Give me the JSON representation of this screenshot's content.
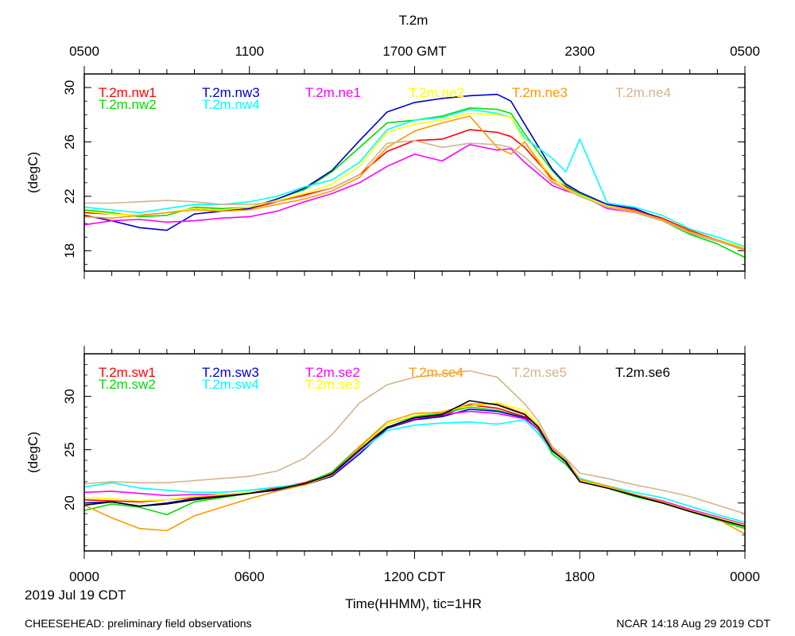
{
  "chart_data": [
    {
      "type": "line",
      "title": "T.2m",
      "top_axis_title": "T.2m",
      "top_tick_labels": [
        "0500",
        "1100",
        "1700 GMT",
        "2300",
        "0500"
      ],
      "ylabel": "(degC)",
      "ylim": [
        16.5,
        31
      ],
      "yticks": [
        18,
        22,
        26,
        30
      ],
      "xlim": [
        0,
        24
      ],
      "legend": [
        "T.2m.nw1",
        "T.2m.nw3",
        "T.2m.ne1",
        "T.2m.ne2",
        "T.2m.ne3",
        "T.2m.ne4",
        "T.2m.nw2",
        "T.2m.nw4"
      ],
      "series": [
        {
          "name": "T.2m.nw1",
          "color": "#ff0000",
          "x": [
            0,
            1,
            2,
            3,
            4,
            5,
            6,
            7,
            8,
            9,
            10,
            11,
            12,
            13,
            14,
            15,
            15.5,
            16,
            17,
            17.5,
            18,
            19,
            20,
            21,
            22,
            23,
            24
          ],
          "y": [
            20.8,
            20.7,
            20.6,
            20.8,
            21.1,
            21,
            21.1,
            21.6,
            22.1,
            22.6,
            23.6,
            25.3,
            26.1,
            26.2,
            26.9,
            26.7,
            26.4,
            25.6,
            23.3,
            22.7,
            22.1,
            21.3,
            21,
            20.4,
            19.5,
            18.8,
            18.1
          ]
        },
        {
          "name": "T.2m.nw2",
          "color": "#00dd00",
          "x": [
            0,
            1,
            2,
            3,
            4,
            5,
            6,
            7,
            8,
            9,
            10,
            11,
            12,
            13,
            14,
            15,
            15.5,
            16,
            17,
            17.5,
            18,
            19,
            20,
            21,
            22,
            23,
            24
          ],
          "y": [
            21,
            20.8,
            20.5,
            20.6,
            21.2,
            21.1,
            21.2,
            21.8,
            22.5,
            23.8,
            25.6,
            27.4,
            27.6,
            27.9,
            28.5,
            28.4,
            28.1,
            26.6,
            23.9,
            22.8,
            22.2,
            21.3,
            20.8,
            20.2,
            19.2,
            18.5,
            17.5
          ]
        },
        {
          "name": "T.2m.nw3",
          "color": "#0000cc",
          "x": [
            0,
            1,
            2,
            3,
            4,
            5,
            6,
            7,
            8,
            9,
            10,
            11,
            12,
            13,
            14,
            15,
            15.5,
            16,
            17,
            17.5,
            18,
            19,
            20,
            21,
            22,
            23,
            24
          ],
          "y": [
            20.6,
            20.2,
            19.7,
            19.5,
            20.7,
            20.9,
            21.1,
            21.8,
            22.6,
            23.9,
            26.1,
            28.2,
            28.9,
            29.2,
            29.4,
            29.5,
            29,
            27.3,
            24,
            22.9,
            22.3,
            21.4,
            21.1,
            20.3,
            19.3,
            18.7,
            18.2
          ]
        },
        {
          "name": "T.2m.nw4",
          "color": "#00ffff",
          "x": [
            0,
            1,
            2,
            3,
            4,
            5,
            6,
            7,
            8,
            9,
            10,
            11,
            12,
            13,
            14,
            15,
            15.5,
            16,
            17,
            17.5,
            18,
            19,
            20,
            21,
            22,
            23,
            24
          ],
          "y": [
            21.2,
            21,
            20.8,
            21.1,
            21.4,
            21.4,
            21.6,
            22,
            22.7,
            23.2,
            24.5,
            26.9,
            27.6,
            27.8,
            28.4,
            28.1,
            27.8,
            26.3,
            24.8,
            23.8,
            26.2,
            21.5,
            21.2,
            20.6,
            19.6,
            19,
            18.3
          ]
        },
        {
          "name": "T.2m.ne1",
          "color": "#ff00ff",
          "x": [
            0,
            1,
            2,
            3,
            4,
            5,
            6,
            7,
            8,
            9,
            10,
            11,
            12,
            13,
            14,
            15,
            15.5,
            16,
            17,
            17.5,
            18,
            19,
            20,
            21,
            22,
            23,
            24
          ],
          "y": [
            19.9,
            20.2,
            20.3,
            20.1,
            20.2,
            20.4,
            20.5,
            20.9,
            21.6,
            22.2,
            23,
            24.2,
            25.1,
            24.6,
            25.8,
            25.4,
            25.5,
            24.5,
            22.8,
            22.4,
            22.1,
            21.1,
            20.8,
            20.3,
            19.3,
            18.7,
            18.1
          ]
        },
        {
          "name": "T.2m.ne2",
          "color": "#ffff00",
          "x": [
            0,
            1,
            2,
            3,
            4,
            5,
            6,
            7,
            8,
            9,
            10,
            11,
            12,
            13,
            14,
            15,
            15.5,
            16,
            17,
            17.5,
            18,
            19,
            20,
            21,
            22,
            23,
            24
          ],
          "y": [
            20.9,
            20.7,
            20.6,
            20.8,
            21.1,
            21,
            21.2,
            21.7,
            22.2,
            22.9,
            24.2,
            26.7,
            27.3,
            27.6,
            28.1,
            28,
            27.8,
            26,
            23.4,
            22.6,
            22.1,
            21.3,
            20.9,
            20.3,
            19.4,
            18.8,
            18.2
          ]
        },
        {
          "name": "T.2m.ne3",
          "color": "#ff9900",
          "x": [
            0,
            1,
            2,
            3,
            4,
            5,
            6,
            7,
            8,
            9,
            10,
            11,
            12,
            13,
            14,
            15,
            15.5,
            16,
            17,
            17.5,
            18,
            19,
            20,
            21,
            22,
            23,
            24
          ],
          "y": [
            20.5,
            20.4,
            20.6,
            20.8,
            21,
            20.9,
            21,
            21.4,
            21.8,
            22.4,
            23.4,
            25.6,
            26.8,
            27.4,
            27.9,
            25.6,
            25.1,
            26,
            23.1,
            22.5,
            22,
            21.2,
            20.9,
            20.3,
            19.4,
            18.8,
            18.1
          ]
        },
        {
          "name": "T.2m.ne4",
          "color": "#d2b48c",
          "x": [
            0,
            1,
            2,
            3,
            4,
            5,
            6,
            7,
            8,
            9,
            10,
            11,
            12,
            13,
            14,
            15,
            15.5,
            16,
            17,
            17.5,
            18,
            19,
            20,
            21,
            22,
            23,
            24
          ],
          "y": [
            21.5,
            21.5,
            21.6,
            21.7,
            21.6,
            21.4,
            21.4,
            21.6,
            22,
            22.6,
            23.6,
            25.9,
            26.1,
            25.6,
            25.9,
            25.8,
            25.6,
            24.9,
            23,
            22.5,
            22,
            21.2,
            20.8,
            20.2,
            19.3,
            18.7,
            18
          ]
        }
      ]
    },
    {
      "type": "line",
      "ylabel": "(degC)",
      "xlabel": "Time(HHMM), tic=1HR",
      "ylim": [
        15.5,
        34
      ],
      "yticks": [
        20,
        25,
        30
      ],
      "xlim": [
        0,
        24
      ],
      "tick_labels": [
        "0000",
        "0600",
        "1200 CDT",
        "1800",
        "0000"
      ],
      "date_label": "2019 Jul 19 CDT",
      "legend": [
        "T.2m.sw1",
        "T.2m.sw3",
        "T.2m.se2",
        "T.2m.se4",
        "T.2m.se5",
        "T.2m.se6",
        "T.2m.sw2",
        "T.2m.sw4",
        "T.2m.se3"
      ],
      "series": [
        {
          "name": "T.2m.sw1",
          "color": "#ff0000",
          "x": [
            0,
            1,
            2,
            3,
            4,
            5,
            6,
            7,
            8,
            9,
            10,
            11,
            12,
            13,
            14,
            15,
            16,
            16.5,
            17,
            17.5,
            18,
            19,
            20,
            21,
            22,
            23,
            24
          ],
          "y": [
            20.3,
            20.2,
            20.1,
            20.3,
            20.5,
            20.7,
            21,
            21.4,
            21.9,
            22.8,
            25.2,
            27.1,
            27.9,
            28.2,
            29.2,
            28.9,
            28.1,
            27.3,
            25.1,
            24,
            22,
            21.5,
            20.7,
            20.1,
            19.3,
            18.6,
            17.9
          ]
        },
        {
          "name": "T.2m.sw2",
          "color": "#00dd00",
          "x": [
            0,
            1,
            2,
            3,
            4,
            5,
            6,
            7,
            8,
            9,
            10,
            11,
            12,
            13,
            14,
            15,
            16,
            16.5,
            17,
            17.5,
            18,
            19,
            20,
            21,
            22,
            23,
            24
          ],
          "y": [
            19.3,
            19.9,
            19.6,
            18.9,
            20.1,
            20.5,
            20.9,
            21.3,
            21.8,
            22.9,
            25.3,
            27.4,
            28.1,
            28.4,
            29,
            28.7,
            28,
            26.8,
            24.6,
            23.6,
            22.1,
            21.4,
            20.6,
            20,
            19.2,
            18.4,
            17.6
          ]
        },
        {
          "name": "T.2m.sw3",
          "color": "#0000cc",
          "x": [
            0,
            1,
            2,
            3,
            4,
            5,
            6,
            7,
            8,
            9,
            10,
            11,
            12,
            13,
            14,
            15,
            16,
            16.5,
            17,
            17.5,
            18,
            19,
            20,
            21,
            22,
            23,
            24
          ],
          "y": [
            20,
            20.1,
            19.7,
            20,
            20.4,
            20.6,
            20.9,
            21.2,
            21.7,
            22.5,
            24.6,
            27,
            27.8,
            28.1,
            28.8,
            28.6,
            28,
            26.9,
            24.9,
            23.8,
            22,
            21.4,
            20.7,
            20.1,
            19.3,
            18.6,
            17.9
          ]
        },
        {
          "name": "T.2m.sw4",
          "color": "#00ffff",
          "x": [
            0,
            1,
            2,
            3,
            4,
            5,
            6,
            7,
            8,
            9,
            10,
            11,
            12,
            13,
            14,
            15,
            16,
            16.5,
            17,
            17.5,
            18,
            19,
            20,
            21,
            22,
            23,
            24
          ],
          "y": [
            21.5,
            21.9,
            21.4,
            21.2,
            21,
            21,
            21.2,
            21.5,
            21.8,
            22.6,
            24.8,
            26.8,
            27.3,
            27.5,
            27.6,
            27.4,
            27.8,
            26.5,
            24.8,
            23.9,
            22.3,
            21.6,
            21,
            20.5,
            19.7,
            18.9,
            18.2
          ]
        },
        {
          "name": "T.2m.se2",
          "color": "#ff00ff",
          "x": [
            0,
            1,
            2,
            3,
            4,
            5,
            6,
            7,
            8,
            9,
            10,
            11,
            12,
            13,
            14,
            15,
            16,
            16.5,
            17,
            17.5,
            18,
            19,
            20,
            21,
            22,
            23,
            24
          ],
          "y": [
            21,
            21.1,
            20.9,
            20.7,
            20.8,
            20.8,
            21,
            21.3,
            21.8,
            22.6,
            24.9,
            27.1,
            27.9,
            28.3,
            28.6,
            28.4,
            27.9,
            26.9,
            24.9,
            24,
            22.1,
            21.5,
            20.8,
            20.2,
            19.4,
            18.7,
            18
          ]
        },
        {
          "name": "T.2m.se3",
          "color": "#ffff00",
          "x": [
            0,
            1,
            2,
            3,
            4,
            5,
            6,
            7,
            8,
            9,
            10,
            11,
            12,
            13,
            14,
            15,
            16,
            16.5,
            17,
            17.5,
            18,
            19,
            20,
            21,
            22,
            23,
            24
          ],
          "y": [
            20.5,
            20.4,
            20.2,
            20.3,
            20.6,
            20.8,
            21,
            21.3,
            21.8,
            22.7,
            25.1,
            27.4,
            28.2,
            28.6,
            29.1,
            29.4,
            28.7,
            27.3,
            25,
            24,
            22.1,
            21.5,
            20.8,
            20.1,
            19.3,
            18.6,
            17.9
          ]
        },
        {
          "name": "T.2m.se4",
          "color": "#ff9900",
          "x": [
            0,
            1,
            2,
            3,
            4,
            5,
            6,
            7,
            8,
            9,
            10,
            11,
            12,
            13,
            14,
            15,
            16,
            16.5,
            17,
            17.5,
            18,
            19,
            20,
            21,
            22,
            23,
            24
          ],
          "y": [
            19.8,
            18.6,
            17.6,
            17.4,
            18.8,
            19.6,
            20.4,
            21.1,
            21.7,
            22.6,
            25.3,
            27.6,
            28.4,
            28.5,
            29.3,
            29.3,
            28.4,
            27.2,
            25,
            24.1,
            22.2,
            21.6,
            20.8,
            20.1,
            19.3,
            18.5,
            17.1
          ]
        },
        {
          "name": "T.2m.se5",
          "color": "#d2b48c",
          "x": [
            0,
            1,
            2,
            3,
            4,
            5,
            6,
            7,
            8,
            9,
            10,
            11,
            12,
            13,
            14,
            15,
            16,
            16.5,
            17,
            17.5,
            18,
            19,
            20,
            21,
            22,
            23,
            24
          ],
          "y": [
            21.8,
            22,
            21.9,
            21.9,
            22.1,
            22.3,
            22.5,
            23,
            24.2,
            26.4,
            29.4,
            31.1,
            31.8,
            32.1,
            32.4,
            31.8,
            29.3,
            27.7,
            25.3,
            24.2,
            22.8,
            22.3,
            21.7,
            21.2,
            20.6,
            19.8,
            19
          ]
        },
        {
          "name": "T.2m.se6",
          "color": "#000000",
          "x": [
            0,
            1,
            2,
            3,
            4,
            5,
            6,
            7,
            8,
            9,
            10,
            11,
            12,
            13,
            14,
            15,
            16,
            16.5,
            17,
            17.5,
            18,
            19,
            20,
            21,
            22,
            23,
            24
          ],
          "y": [
            19.8,
            20.1,
            19.7,
            19.9,
            20.3,
            20.6,
            20.9,
            21.3,
            21.8,
            22.7,
            25,
            27.1,
            28,
            28.3,
            29.6,
            29.2,
            28.3,
            27.1,
            24.9,
            23.9,
            22,
            21.4,
            20.7,
            20,
            19.2,
            18.5,
            17.8
          ]
        }
      ]
    }
  ],
  "footer": {
    "left": "CHEESEHEAD: preliminary field observations",
    "right": "NCAR 14:18 Aug 29 2019 CDT"
  }
}
